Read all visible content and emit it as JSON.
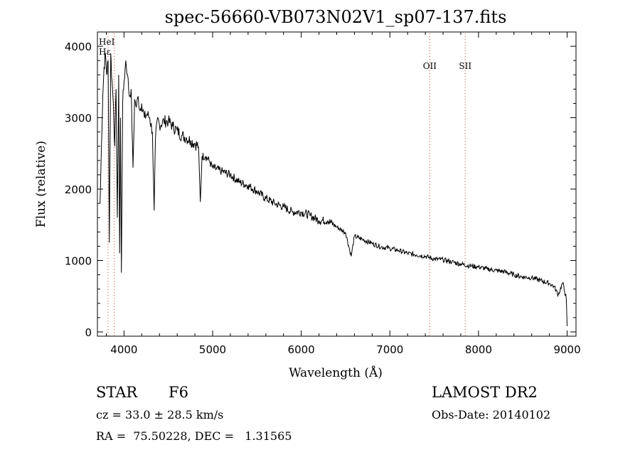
{
  "chart_data": {
    "type": "line",
    "title": "spec-56660-VB073N02V1_sp07-137.fits",
    "xlabel": "Wavelength (Å)",
    "ylabel": "Flux (relative)",
    "xlim": [
      3700,
      9100
    ],
    "ylim": [
      -60,
      4200
    ],
    "xticks": [
      4000,
      5000,
      6000,
      7000,
      8000,
      9000
    ],
    "yticks": [
      0,
      1000,
      2000,
      3000,
      4000
    ],
    "grid": false,
    "line_color": "#000000",
    "series": [
      {
        "x": [
          3730,
          3745,
          3760,
          3775,
          3790,
          3805,
          3820,
          3835,
          3850,
          3865,
          3880,
          3895,
          3910,
          3925,
          3940,
          3950,
          3960,
          3970,
          3985,
          4000,
          4020,
          4040,
          4060,
          4080,
          4101,
          4120,
          4140,
          4160,
          4180,
          4200,
          4230,
          4260,
          4290,
          4320,
          4340,
          4355,
          4380,
          4400,
          4450,
          4500,
          4550,
          4600,
          4650,
          4700,
          4750,
          4800,
          4840,
          4861,
          4880,
          4920,
          4960,
          5000,
          5100,
          5200,
          5300,
          5400,
          5500,
          5600,
          5700,
          5800,
          5900,
          6000,
          6100,
          6200,
          6300,
          6400,
          6500,
          6563,
          6600,
          6700,
          6800,
          6900,
          7000,
          7100,
          7200,
          7300,
          7400,
          7500,
          7600,
          7700,
          7800,
          7900,
          8000,
          8100,
          8200,
          8300,
          8400,
          8500,
          8600,
          8700,
          8800,
          8850,
          8900,
          8950,
          8990,
          9000
        ],
        "y": [
          1800,
          2600,
          3300,
          3700,
          3900,
          3600,
          3800,
          1250,
          3900,
          3500,
          3200,
          2600,
          3400,
          1600,
          3600,
          1100,
          3000,
          830,
          3200,
          3500,
          3800,
          3600,
          3300,
          3400,
          2300,
          3250,
          3150,
          3300,
          3100,
          3200,
          3000,
          3050,
          3000,
          2800,
          1700,
          2700,
          3000,
          2900,
          2950,
          2950,
          2880,
          2820,
          2750,
          2720,
          2680,
          2640,
          2600,
          1820,
          2460,
          2460,
          2400,
          2300,
          2250,
          2200,
          2100,
          2050,
          1970,
          1870,
          1800,
          1750,
          1680,
          1680,
          1630,
          1560,
          1560,
          1470,
          1390,
          1060,
          1340,
          1290,
          1240,
          1190,
          1170,
          1140,
          1100,
          1080,
          1060,
          1020,
          1010,
          980,
          950,
          925,
          910,
          880,
          860,
          840,
          800,
          770,
          760,
          720,
          680,
          640,
          520,
          690,
          470,
          80
        ]
      }
    ],
    "lines": [
      {
        "label": "HeI",
        "x": 3820
      },
      {
        "label": "Hε",
        "x": 3890
      },
      {
        "label": "OII",
        "x": 7450
      },
      {
        "label": "SII",
        "x": 7850
      }
    ]
  },
  "info": {
    "class_label": "STAR",
    "subclass": "F6",
    "survey": "LAMOST DR2",
    "cz": "cz = 33.0 ± 28.5 km/s",
    "obs_date": "Obs-Date: 20140102",
    "coords": "RA =  75.50228, DEC =   1.31565"
  }
}
